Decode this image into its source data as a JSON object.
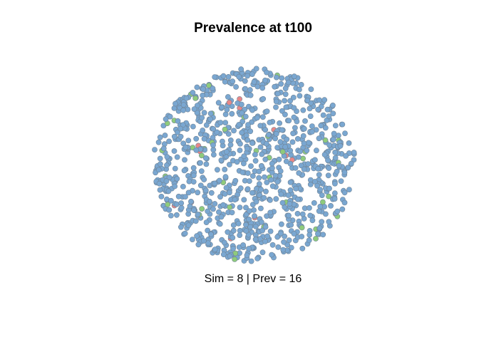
{
  "chart_data": {
    "type": "scatter",
    "title": "Prevalence at t100",
    "subtitle": "Sim = 8  | Prev = 16",
    "background": "#ffffff",
    "node_edge_color": "#6f8497",
    "colors": {
      "susceptible": "#7aa7d1",
      "infected": "#e88787",
      "recovered": "#8fcb7b"
    },
    "counts": {
      "infected": 16,
      "recovered": 44
    },
    "seed": 8,
    "nodes_per_row_factor": 1
  }
}
